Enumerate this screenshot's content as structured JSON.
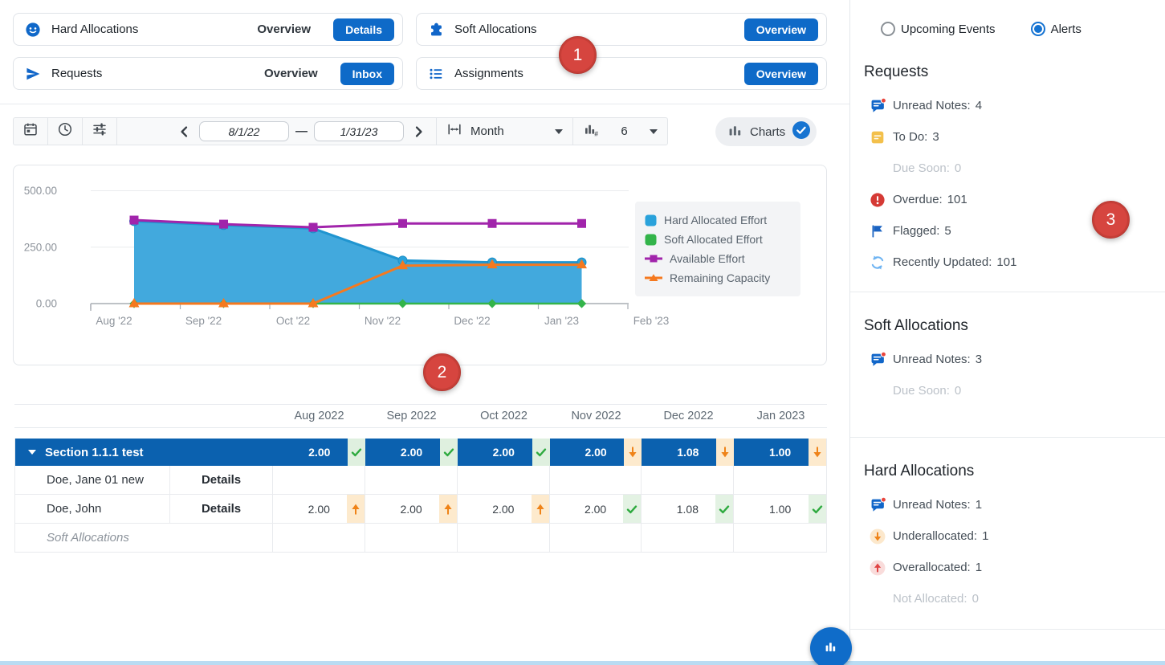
{
  "nav_cards": [
    {
      "icon": "hard-allocations",
      "title": "Hard Allocations",
      "overview_label": "Overview",
      "button_label": "Details"
    },
    {
      "icon": "requests",
      "title": "Requests",
      "overview_label": "Overview",
      "button_label": "Inbox"
    },
    {
      "icon": "soft-allocations",
      "title": "Soft Allocations",
      "overview_label": "",
      "button_label": "Overview"
    },
    {
      "icon": "assignments",
      "title": "Assignments",
      "overview_label": "",
      "button_label": "Overview"
    }
  ],
  "toolbar": {
    "date_start": "8/1/22",
    "date_end": "1/31/23",
    "range_separator": "—",
    "granularity_label": "Month",
    "count_label": "6",
    "charts_label": "Charts"
  },
  "chart_data": {
    "type": "area",
    "categories": [
      "Aug '22",
      "Sep '22",
      "Oct '22",
      "Nov '22",
      "Dec '22",
      "Jan '23"
    ],
    "xaxis_ticks": [
      "Aug '22",
      "Sep '22",
      "Oct '22",
      "Nov '22",
      "Dec '22",
      "Jan '23",
      "Feb '23"
    ],
    "ylim": [
      0,
      500
    ],
    "yticks": [
      0,
      250,
      500
    ],
    "ytick_labels": [
      "0.00",
      "250.00",
      "500.00"
    ],
    "grid": true,
    "legend_position": "right",
    "series": [
      {
        "name": "Hard Allocated Effort",
        "type": "area",
        "marker": "circle",
        "legend": "square",
        "color": "#42a9dd",
        "line_color": "#2095d0",
        "values": [
          365,
          348,
          333,
          191,
          183,
          183
        ]
      },
      {
        "name": "Soft Allocated Effort",
        "type": "line",
        "marker": "diamond",
        "legend": "square",
        "color": "#33b44a",
        "values": [
          0,
          0,
          0,
          0,
          0,
          0
        ]
      },
      {
        "name": "Available Effort",
        "type": "line",
        "marker": "square",
        "legend": "line-square",
        "color": "#a124ab",
        "values": [
          370,
          352,
          338,
          355,
          355,
          355
        ]
      },
      {
        "name": "Remaining Capacity",
        "type": "line",
        "marker": "triangle",
        "legend": "line-triangle",
        "color": "#f5791f",
        "values": [
          0,
          0,
          0,
          168,
          172,
          172
        ]
      }
    ]
  },
  "table": {
    "columns": [
      "Aug 2022",
      "Sep 2022",
      "Oct 2022",
      "Nov 2022",
      "Dec 2022",
      "Jan 2023"
    ],
    "section_row": {
      "label": "Section 1.1.1 test",
      "values": [
        "2.00",
        "2.00",
        "2.00",
        "2.00",
        "1.08",
        "1.00"
      ],
      "statuses": [
        "check",
        "check",
        "check",
        "down",
        "down",
        "down"
      ]
    },
    "rows": [
      {
        "name": "Doe, Jane 01 new",
        "details": "Details",
        "values": [
          "",
          "",
          "",
          "",
          "",
          ""
        ],
        "statuses": [
          "none",
          "none",
          "none",
          "none",
          "none",
          "none"
        ],
        "italic": false,
        "wide_name": false
      },
      {
        "name": "Doe, John",
        "details": "Details",
        "values": [
          "2.00",
          "2.00",
          "2.00",
          "2.00",
          "1.08",
          "1.00"
        ],
        "statuses": [
          "up",
          "up",
          "up",
          "check",
          "check",
          "check"
        ],
        "italic": false,
        "wide_name": false
      },
      {
        "name": "Soft Allocations",
        "details": "",
        "values": [
          "",
          "",
          "",
          "",
          "",
          ""
        ],
        "statuses": [
          "none",
          "none",
          "none",
          "none",
          "none",
          "none"
        ],
        "italic": true,
        "wide_name": true
      }
    ]
  },
  "sidebar": {
    "tabs": [
      {
        "label": "Upcoming Events",
        "selected": false
      },
      {
        "label": "Alerts",
        "selected": true
      }
    ],
    "sections": [
      {
        "title": "Requests",
        "items": [
          {
            "icon": "unread-notes",
            "label": "Unread Notes:",
            "value": "4",
            "muted": false
          },
          {
            "icon": "todo",
            "label": "To Do:",
            "value": "3",
            "muted": false
          },
          {
            "icon": "none",
            "label": "Due Soon:",
            "value": "0",
            "muted": true
          },
          {
            "icon": "overdue",
            "label": "Overdue:",
            "value": "101",
            "muted": false
          },
          {
            "icon": "flag",
            "label": "Flagged:",
            "value": "5",
            "muted": false
          },
          {
            "icon": "refresh",
            "label": "Recently Updated:",
            "value": "101",
            "muted": false
          }
        ]
      },
      {
        "title": "Soft Allocations",
        "items": [
          {
            "icon": "unread-notes",
            "label": "Unread Notes:",
            "value": "3",
            "muted": false
          },
          {
            "icon": "none",
            "label": "Due Soon:",
            "value": "0",
            "muted": true
          }
        ]
      },
      {
        "title": "Hard Allocations",
        "items": [
          {
            "icon": "unread-notes",
            "label": "Unread Notes:",
            "value": "1",
            "muted": false
          },
          {
            "icon": "underallocated",
            "label": "Underallocated:",
            "value": "1",
            "muted": false
          },
          {
            "icon": "overallocated",
            "label": "Overallocated:",
            "value": "1",
            "muted": false
          },
          {
            "icon": "none",
            "label": "Not Allocated:",
            "value": "0",
            "muted": true
          }
        ]
      }
    ]
  },
  "annotations": {
    "badges": [
      {
        "label": "1"
      },
      {
        "label": "2"
      },
      {
        "label": "3"
      }
    ]
  }
}
